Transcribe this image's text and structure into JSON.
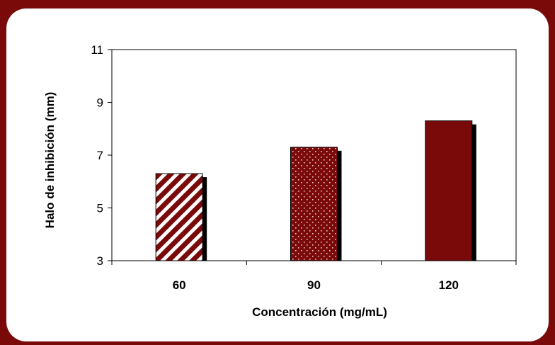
{
  "chart_data": {
    "type": "bar",
    "title": "",
    "xlabel": "Concentración (mg/mL)",
    "ylabel": "Halo de inhibición (mm)",
    "categories": [
      "60",
      "90",
      "120"
    ],
    "values": [
      6.3,
      7.3,
      8.3
    ],
    "ylim": [
      3,
      11
    ],
    "yticks": [
      3,
      5,
      7,
      9,
      11
    ],
    "grid": false,
    "legend": "none",
    "bar_fills": [
      "diagonal-stripes",
      "dotted",
      "solid"
    ],
    "colors": {
      "bar": "#7a0a0a",
      "shadow": "#000000",
      "frame": "#7a0a0a"
    }
  }
}
